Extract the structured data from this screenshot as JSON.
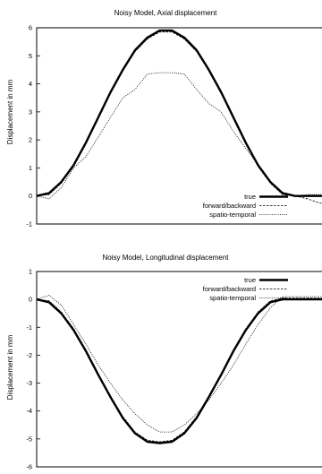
{
  "chart_data": [
    {
      "type": "line",
      "title": "Noisy Model, Axial displacement",
      "ylabel": "Displacement in mm",
      "xlabel": "",
      "ylim": [
        -1,
        6
      ],
      "yticks": [
        -1,
        0,
        1,
        2,
        3,
        4,
        5,
        6
      ],
      "x": [
        0,
        1,
        2,
        3,
        4,
        5,
        6,
        7,
        8,
        9,
        10,
        11,
        12,
        13,
        14,
        15,
        16,
        17,
        18,
        19,
        20,
        21,
        22,
        23,
        24
      ],
      "legend": "bottom-right",
      "series": [
        {
          "name": "true",
          "style": "thick-solid",
          "values": [
            0,
            0.1,
            0.5,
            1.1,
            1.9,
            2.8,
            3.7,
            4.5,
            5.2,
            5.65,
            5.9,
            5.9,
            5.65,
            5.2,
            4.5,
            3.7,
            2.8,
            1.9,
            1.1,
            0.5,
            0.1,
            0,
            0,
            0,
            0
          ]
        },
        {
          "name": "forward/backward",
          "style": "dashed",
          "values": [
            0,
            0.05,
            0.45,
            1.05,
            1.85,
            2.75,
            3.65,
            4.45,
            5.15,
            5.6,
            5.85,
            5.85,
            5.6,
            5.15,
            4.45,
            3.65,
            2.75,
            1.85,
            1.05,
            0.45,
            0.05,
            0,
            -0.1,
            -0.25,
            -0.35
          ]
        },
        {
          "name": "spatio-temporal",
          "style": "dotted",
          "values": [
            0,
            -0.1,
            0.3,
            1.0,
            1.4,
            2.1,
            2.8,
            3.5,
            3.8,
            4.35,
            4.4,
            4.4,
            4.35,
            3.8,
            3.3,
            3.0,
            2.3,
            1.7,
            1.1,
            0.5,
            0.1,
            0,
            0.05,
            0.05,
            0.1
          ]
        }
      ]
    },
    {
      "type": "line",
      "title": "Noisy Model, Longitudinal displacement",
      "ylabel": "Displacement in mm",
      "xlabel": "",
      "ylim": [
        -6,
        1
      ],
      "yticks": [
        -6,
        -5,
        -4,
        -3,
        -2,
        -1,
        0,
        1
      ],
      "x": [
        0,
        1,
        2,
        3,
        4,
        5,
        6,
        7,
        8,
        9,
        10,
        11,
        12,
        13,
        14,
        15,
        16,
        17,
        18,
        19,
        20,
        21,
        22,
        23,
        24
      ],
      "legend": "top-right",
      "series": [
        {
          "name": "true",
          "style": "thick-solid",
          "values": [
            0,
            -0.1,
            -0.5,
            -1.1,
            -1.85,
            -2.7,
            -3.5,
            -4.25,
            -4.8,
            -5.1,
            -5.15,
            -5.1,
            -4.8,
            -4.25,
            -3.5,
            -2.7,
            -1.85,
            -1.1,
            -0.5,
            -0.1,
            0,
            0,
            0,
            0,
            0
          ]
        },
        {
          "name": "forward/backward",
          "style": "dashed",
          "values": [
            0,
            -0.05,
            -0.45,
            -1.05,
            -1.8,
            -2.65,
            -3.45,
            -4.2,
            -4.75,
            -5.05,
            -5.1,
            -5.05,
            -4.75,
            -4.2,
            -3.45,
            -2.65,
            -1.8,
            -1.05,
            -0.45,
            -0.05,
            0.05,
            0.05,
            0.05,
            0.05,
            0.05
          ]
        },
        {
          "name": "spatio-temporal",
          "style": "dotted",
          "values": [
            0,
            0.15,
            -0.2,
            -0.9,
            -1.6,
            -2.35,
            -3.0,
            -3.6,
            -4.1,
            -4.5,
            -4.75,
            -4.75,
            -4.5,
            -4.1,
            -3.6,
            -3.0,
            -2.35,
            -1.6,
            -0.9,
            -0.3,
            0.1,
            0.1,
            0.1,
            0.1,
            0.1
          ]
        }
      ]
    }
  ]
}
